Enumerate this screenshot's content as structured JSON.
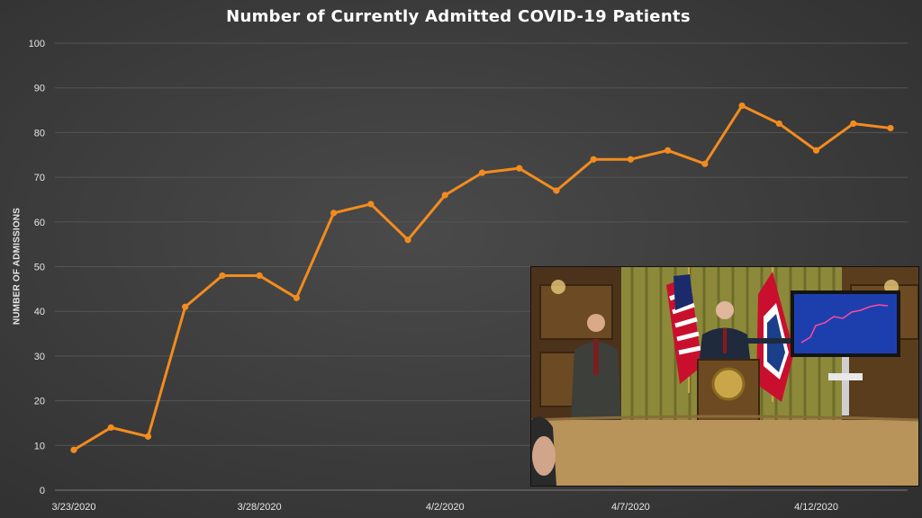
{
  "chart_data": {
    "type": "line",
    "title": "Number of Currently Admitted COVID-19 Patients",
    "ylabel": "NUMBER OF ADMISSIONS",
    "xlabel": "",
    "ylim": [
      0,
      100
    ],
    "yticks": [
      0,
      10,
      20,
      30,
      40,
      50,
      60,
      70,
      80,
      90,
      100
    ],
    "xtick_labels": [
      {
        "index": 0,
        "label": "3/23/2020"
      },
      {
        "index": 5,
        "label": "3/28/2020"
      },
      {
        "index": 10,
        "label": "4/2/2020"
      },
      {
        "index": 15,
        "label": "4/7/2020"
      },
      {
        "index": 20,
        "label": "4/12/2020"
      }
    ],
    "x": [
      "3/23/2020",
      "3/24/2020",
      "3/25/2020",
      "3/26/2020",
      "3/27/2020",
      "3/28/2020",
      "3/29/2020",
      "3/30/2020",
      "3/31/2020",
      "4/1/2020",
      "4/2/2020",
      "4/3/2020",
      "4/4/2020",
      "4/5/2020",
      "4/6/2020",
      "4/7/2020",
      "4/8/2020",
      "4/9/2020",
      "4/10/2020",
      "4/11/2020",
      "4/12/2020",
      "4/13/2020",
      "4/14/2020"
    ],
    "series": [
      {
        "values": [
          9,
          14,
          12,
          41,
          48,
          48,
          43,
          62,
          64,
          56,
          66,
          71,
          72,
          67,
          74,
          74,
          76,
          73,
          86,
          82,
          76,
          82,
          81
        ],
        "color": "#f28c1e"
      }
    ],
    "grid": true,
    "legend": "none",
    "background": "#3e3e3e"
  },
  "inset": {
    "content": "press-conference video feed"
  }
}
